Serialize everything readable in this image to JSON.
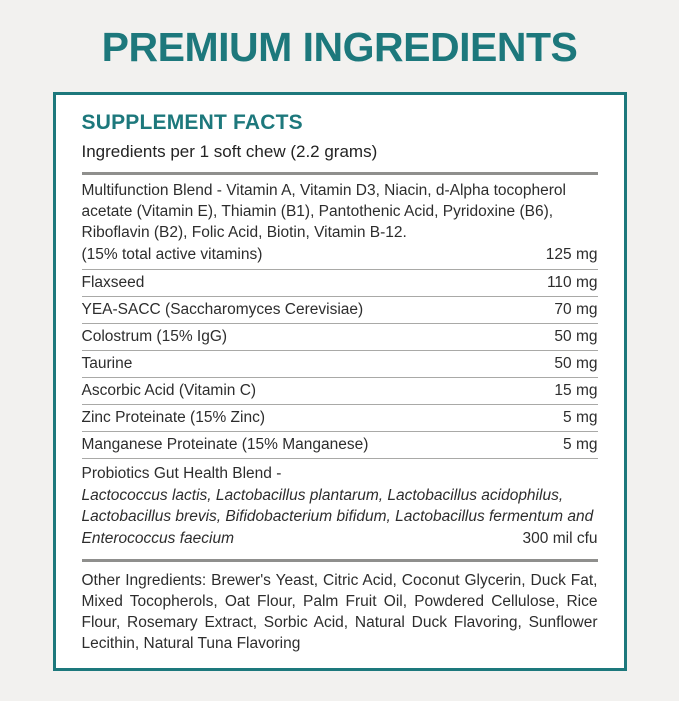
{
  "page": {
    "title": "PREMIUM INGREDIENTS"
  },
  "supplement_facts": {
    "heading": "SUPPLEMENT FACTS",
    "serving_line": "Ingredients per 1 soft chew (2.2 grams)",
    "multifunction_blend": {
      "description": "Multifunction Blend - Vitamin A, Vitamin D3, Niacin, d-Alpha tocopherol acetate (Vitamin E), Thiamin (B1), Pantothenic Acid, Pyridoxine (B6), Riboflavin (B2), Folic Acid, Biotin, Vitamin B-12.",
      "note": "(15% total active vitamins)",
      "amount": "125 mg"
    },
    "rows": [
      {
        "name": "Flaxseed",
        "amount": "110 mg"
      },
      {
        "name": "YEA-SACC (Saccharomyces Cerevisiae)",
        "amount": "70 mg"
      },
      {
        "name": "Colostrum (15% IgG)",
        "amount": "50 mg"
      },
      {
        "name": "Taurine",
        "amount": "50 mg"
      },
      {
        "name": "Ascorbic Acid (Vitamin C)",
        "amount": "15 mg"
      },
      {
        "name": "Zinc Proteinate (15% Zinc)",
        "amount": "5 mg"
      },
      {
        "name": "Manganese Proteinate (15% Manganese)",
        "amount": "5 mg"
      }
    ],
    "probiotics_blend": {
      "title": "Probiotics Gut Health Blend -",
      "species": "Lactococcus lactis, Lactobacillus plantarum, Lactobacillus acidophilus, Lactobacillus brevis, Bifidobacterium bifidum, Lactobacillus fermentum and Enterococcus faecium",
      "amount": "300 mil cfu"
    },
    "other_ingredients": "Other Ingredients: Brewer's Yeast, Citric Acid, Coconut Glycerin, Duck Fat, Mixed Tocopherols, Oat Flour, Palm Fruit Oil, Powdered Cellulose, Rice Flour, Rosemary Extract, Sorbic Acid, Natural Duck Flavoring, Sunflower Lecithin, Natural Tuna Flavoring"
  },
  "colors": {
    "teal": "#1d787c",
    "page_background": "#f2f1ef",
    "panel_background": "#ffffff",
    "text": "#2d2d2d",
    "divider_thin": "#a9a9a7",
    "divider_thick": "#8f8f8d"
  }
}
